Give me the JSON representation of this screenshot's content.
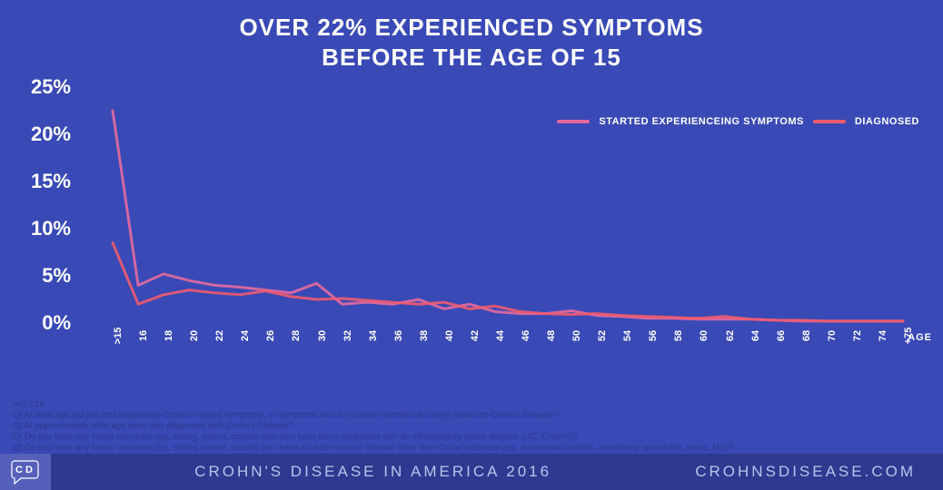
{
  "background_color": "#3949b5",
  "title": {
    "line1": "Over 22% experienced symptoms",
    "line2": "before the age of 15",
    "color": "#ffffff",
    "fontsize": 26
  },
  "chart": {
    "type": "line",
    "ylim": [
      0,
      25
    ],
    "yticks": [
      0,
      5,
      10,
      15,
      20,
      25
    ],
    "ytick_suffix": "%",
    "ytick_fontsize": 22,
    "x_categories": [
      ">15",
      "16",
      "18",
      "20",
      "22",
      "24",
      "26",
      "28",
      "30",
      "32",
      "34",
      "36",
      "38",
      "40",
      "42",
      "44",
      "46",
      "48",
      "50",
      "52",
      "54",
      "56",
      "58",
      "60",
      "62",
      "64",
      "66",
      "68",
      "70",
      "72",
      "74",
      "+75"
    ],
    "x_axis_title": "AGE",
    "x_tick_fontsize": 11,
    "series": [
      {
        "name": "STARTED EXPERIENCEING SYMPTOMS",
        "color": "#e36aa0",
        "stroke_width": 3,
        "values": [
          22.5,
          4.0,
          5.2,
          4.5,
          4.0,
          3.8,
          3.5,
          3.2,
          4.2,
          2.0,
          2.2,
          2.0,
          2.5,
          1.5,
          2.0,
          1.2,
          1.0,
          1.0,
          1.3,
          0.8,
          0.7,
          0.5,
          0.5,
          0.4,
          0.4,
          0.4,
          0.3,
          0.2,
          0.2,
          0.2,
          0.2,
          0.2
        ]
      },
      {
        "name": "DIAGNOSED",
        "color": "#ef5b6e",
        "stroke_width": 3,
        "values": [
          8.5,
          2.0,
          3.0,
          3.5,
          3.2,
          3.0,
          3.4,
          2.8,
          2.5,
          2.6,
          2.4,
          2.2,
          2.0,
          2.2,
          1.5,
          1.8,
          1.2,
          1.0,
          0.9,
          1.0,
          0.8,
          0.7,
          0.6,
          0.5,
          0.7,
          0.4,
          0.3,
          0.3,
          0.2,
          0.2,
          0.2,
          0.2
        ]
      }
    ],
    "axis_text_color": "#ffffff"
  },
  "legend": {
    "items": [
      {
        "label": "STARTED EXPERIENCEING SYMPTOMS",
        "color": "#e36aa0"
      },
      {
        "label": "DIAGNOSED",
        "color": "#ef5b6e"
      }
    ]
  },
  "footnotes": {
    "color": "#2d3a8f",
    "lines": [
      "n=2,018",
      "Q) At what age did you first experience Crohn's-related symptoms, or symptoms which you later identified as being related to Crohn's Disease?",
      "Q) At approximately what age were you diagnosed with Crohn's Disease?",
      "Q) Do you have any family members (eg, sibling, parent, cousin) who also have been diagnosed with an inflammatory bowel disease (UC, Crohn's)?",
      "Q) Do you have any family members (eg, sibling, parent, cousin) who have an auto-immune disease other than Crohn's disease (eg, rheumatoid arthritis, ankylosing spondylitis, lupus, MS)?"
    ]
  },
  "footer": {
    "background": "#2d3a8f",
    "logo_bg": "#5560bb",
    "logo_text": "CD",
    "logo_text_color": "#ffffff",
    "title": "CROHN'S DISEASE IN AMERICA 2016",
    "url": "CROHNSDISEASE.COM",
    "text_color": "#b9c3ef"
  }
}
